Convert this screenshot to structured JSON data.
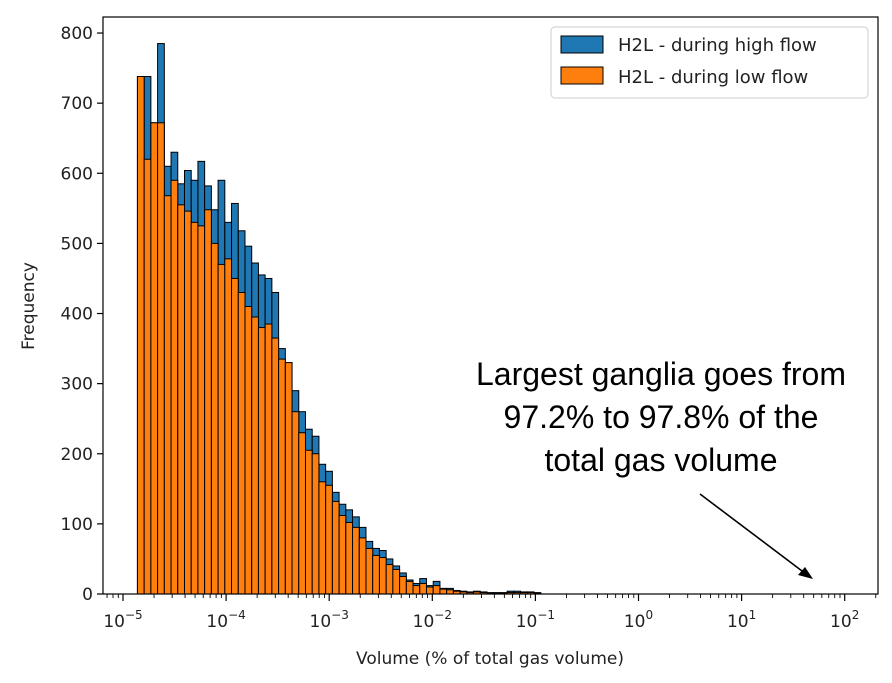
{
  "chart_data": {
    "type": "bar",
    "xscale": "log",
    "xlabel": "Volume (% of total gas volume)",
    "ylabel": "Frequency",
    "xlim_log10": [
      -5.2,
      2.35
    ],
    "ylim": [
      0,
      820
    ],
    "yticks": [
      0,
      100,
      200,
      300,
      400,
      500,
      600,
      700,
      800
    ],
    "xticks": [
      {
        "base": "10",
        "exp": "−5"
      },
      {
        "base": "10",
        "exp": "−4"
      },
      {
        "base": "10",
        "exp": "−3"
      },
      {
        "base": "10",
        "exp": "−2"
      },
      {
        "base": "10",
        "exp": "−1"
      },
      {
        "base": "10",
        "exp": "0"
      },
      {
        "base": "10",
        "exp": "1"
      },
      {
        "base": "10",
        "exp": "2"
      }
    ],
    "bins_log10_start": -4.86,
    "bin_width_log10": 0.0652,
    "series": [
      {
        "name": "H2L - during high flow",
        "color": "#1f77b4",
        "values": [
          738,
          738,
          672,
          785,
          610,
          630,
          585,
          604,
          590,
          617,
          582,
          548,
          590,
          530,
          557,
          518,
          496,
          472,
          455,
          450,
          430,
          350,
          330,
          290,
          260,
          235,
          225,
          185,
          175,
          145,
          128,
          120,
          110,
          95,
          75,
          65,
          62,
          50,
          40,
          30,
          20,
          15,
          22,
          12,
          18,
          8,
          8,
          5,
          4,
          3,
          4,
          3,
          2,
          2,
          2,
          4,
          4,
          3,
          3,
          2
        ]
      },
      {
        "name": "H2L - during low flow",
        "color": "#ff7f0e",
        "values": [
          738,
          620,
          672,
          672,
          568,
          590,
          555,
          546,
          530,
          525,
          548,
          500,
          470,
          478,
          450,
          430,
          410,
          395,
          380,
          385,
          365,
          335,
          330,
          260,
          230,
          205,
          200,
          160,
          155,
          132,
          112,
          102,
          95,
          80,
          65,
          55,
          52,
          42,
          35,
          25,
          18,
          12,
          15,
          10,
          12,
          7,
          6,
          4,
          3,
          2,
          3,
          2,
          1,
          1,
          1,
          2,
          2,
          2,
          2,
          1
        ]
      }
    ],
    "legend_position": "top-right",
    "annotation": {
      "lines": [
        "Largest ganglia goes from",
        "97.2% to 97.8% of the",
        "total gas volume"
      ]
    }
  }
}
